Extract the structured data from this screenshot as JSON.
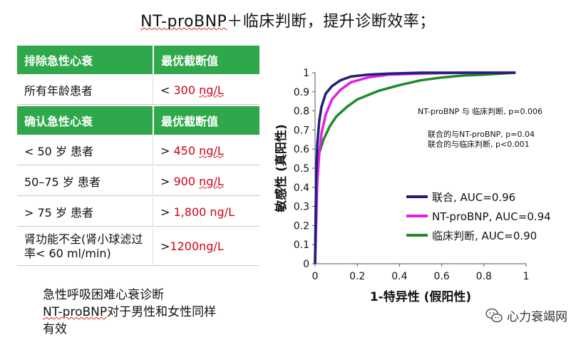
{
  "title": {
    "part1": "NT-proBNP",
    "part2": "＋临床判断，提升诊断效率；"
  },
  "table": {
    "header1": {
      "col1": "排除急性心衰",
      "col2": "最优截断值"
    },
    "row_all": {
      "label": "所有年龄患者",
      "prefix": "< ",
      "value": "300",
      "unit": "ng/L"
    },
    "header2": {
      "col1": "确认急性心衰",
      "col2": "最优截断值"
    },
    "rows": [
      {
        "label": "< 50 岁 患者",
        "prefix": "> ",
        "value": "450",
        "unit": "ng/L"
      },
      {
        "label": "50–75 岁 患者",
        "prefix": "> ",
        "value": "900",
        "unit": "ng/L"
      },
      {
        "label": "> 75 岁 患者",
        "prefix": "> ",
        "value": "1,800 ng/L",
        "unit": ""
      },
      {
        "label": "肾功能不全(肾小球滤过率< 60 ml/min)",
        "prefix": ">",
        "value": "1200ng/L",
        "unit": ""
      }
    ]
  },
  "note": {
    "line1": "急性呼吸困难心衰诊断",
    "line2_a": "NT-proBNP",
    "line2_b": "对于男性和女性同样",
    "line3": "有效"
  },
  "watermark": {
    "icon": "wechat-icon",
    "text": "心力衰竭网"
  },
  "chart_data": {
    "type": "line",
    "xlabel": "1-特异性 (假阳性)",
    "ylabel": "敏感性 (真阳性)",
    "xlim": [
      0,
      1
    ],
    "ylim": [
      0,
      1
    ],
    "x_ticks": [
      "0",
      "0.2",
      "0.4",
      "0.6",
      "0.8",
      "1"
    ],
    "y_ticks": [
      "0",
      "0.1",
      "0.2",
      "0.3",
      "0.4",
      "0.5",
      "0.6",
      "0.7",
      "0.8",
      "0.9",
      "1"
    ],
    "grid": false,
    "annotations": [
      "NT-proBNP 与 临床判断, p=0.006",
      "联合的与NT-proBNP, p=0.04",
      "联合的与临床判断, p<0.001"
    ],
    "legend_position": "bottom-right",
    "series": [
      {
        "name": "联合, AUC=0.96",
        "color": "#1f1f7a",
        "x": [
          0,
          0.005,
          0.01,
          0.02,
          0.03,
          0.05,
          0.08,
          0.12,
          0.17,
          0.25,
          0.35,
          0.5,
          0.7,
          0.95
        ],
        "y": [
          0,
          0.45,
          0.62,
          0.75,
          0.82,
          0.89,
          0.93,
          0.96,
          0.98,
          0.99,
          0.995,
          1.0,
          1.0,
          1.0
        ]
      },
      {
        "name": "NT-proBNP, AUC=0.94",
        "color": "#e020e0",
        "x": [
          0,
          0.01,
          0.02,
          0.03,
          0.05,
          0.08,
          0.12,
          0.17,
          0.25,
          0.35,
          0.5,
          0.7,
          0.95
        ],
        "y": [
          0,
          0.42,
          0.58,
          0.68,
          0.78,
          0.86,
          0.91,
          0.95,
          0.975,
          0.99,
          0.995,
          1.0,
          1.0
        ]
      },
      {
        "name": "临床判断, AUC=0.90",
        "color": "#1f8a2a",
        "x": [
          0,
          0.005,
          0.01,
          0.02,
          0.04,
          0.07,
          0.1,
          0.15,
          0.2,
          0.3,
          0.4,
          0.5,
          0.6,
          0.7,
          0.8,
          0.95
        ],
        "y": [
          0,
          0.42,
          0.52,
          0.58,
          0.65,
          0.72,
          0.77,
          0.82,
          0.86,
          0.905,
          0.935,
          0.96,
          0.975,
          0.985,
          0.99,
          1.0
        ]
      }
    ]
  }
}
